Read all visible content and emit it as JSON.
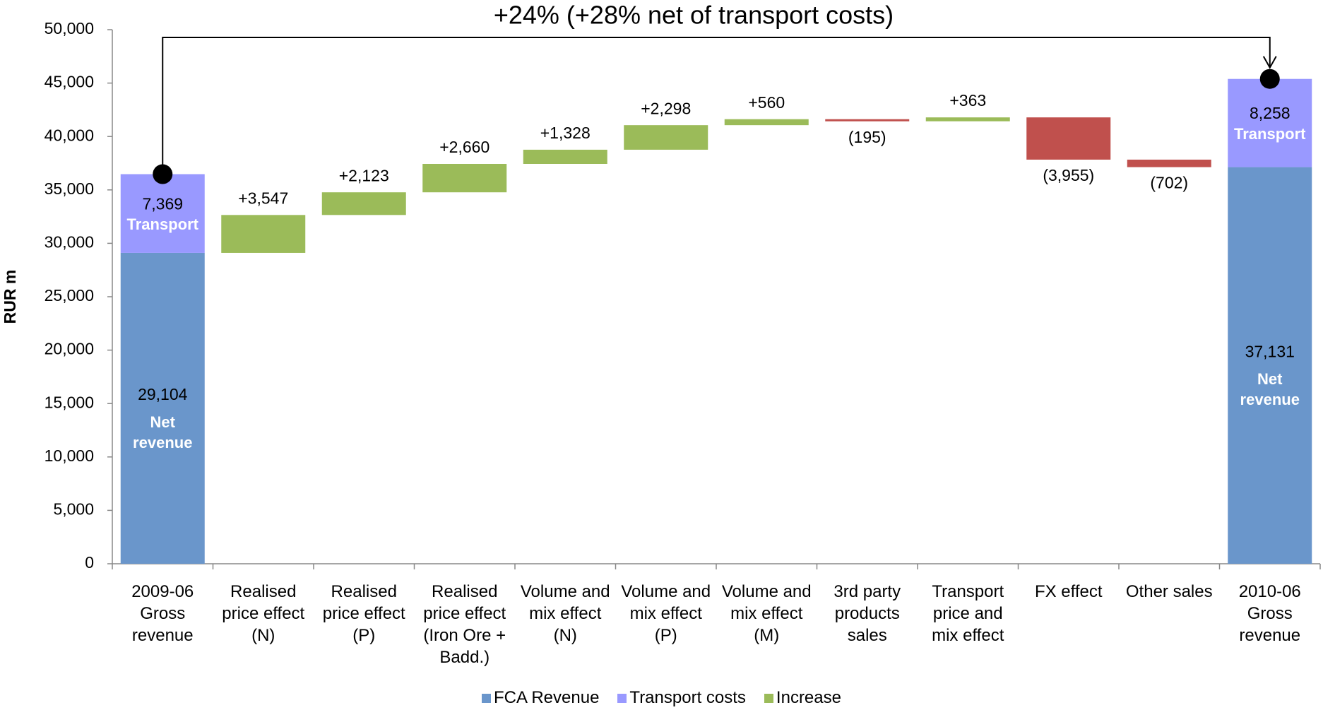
{
  "chart_data": {
    "type": "waterfall",
    "title": "+24% (+28% net of transport costs)",
    "y_label": "RUR m",
    "categories": [
      "2009-06\nGross\nrevenue",
      "Realised\nprice effect\n(N)",
      "Realised\nprice effect\n(P)",
      "Realised\nprice effect\n(Iron Ore +\nBadd.)",
      "Volume and\nmix effect\n(N)",
      "Volume and\nmix effect\n(P)",
      "Volume and\nmix effect\n(M)",
      "3rd party\nproducts\nsales",
      "Transport\nprice and\nmix effect",
      "FX effect",
      "Other sales",
      "2010-06\nGross\nrevenue"
    ],
    "series": [
      {
        "name": "FCA Revenue",
        "color": "#6a96cb",
        "segment_label": "Net revenue",
        "values": [
          29104,
          null,
          null,
          null,
          null,
          null,
          null,
          null,
          null,
          null,
          null,
          37131
        ],
        "value_labels": [
          "29,104",
          null,
          null,
          null,
          null,
          null,
          null,
          null,
          null,
          null,
          null,
          "37,131"
        ]
      },
      {
        "name": "Transport costs",
        "color": "#9999ff",
        "segment_label": "Transport",
        "values": [
          7369,
          null,
          null,
          null,
          null,
          null,
          null,
          null,
          null,
          null,
          null,
          8258
        ],
        "value_labels": [
          "7,369",
          null,
          null,
          null,
          null,
          null,
          null,
          null,
          null,
          null,
          null,
          "8,258"
        ]
      },
      {
        "name": "Increase",
        "color": "#9bbb59",
        "values": [
          null,
          3547,
          2123,
          2660,
          1328,
          2298,
          560,
          -195,
          363,
          -3955,
          -702,
          null
        ],
        "value_labels": [
          null,
          "+3,547",
          "+2,123",
          "+2,660",
          "+1,328",
          "+2,298",
          "+560",
          "(195)",
          "+363",
          "(3,955)",
          "(702)",
          null
        ]
      }
    ],
    "decrease_color": "#c0504d",
    "ylim": [
      0,
      50000
    ],
    "yticks": [
      0,
      {
        "value": 5000,
        "label": "5,000"
      },
      {
        "value": 10000,
        "label": "10,000"
      },
      {
        "value": 15000,
        "label": "15,000"
      },
      {
        "value": 20000,
        "label": "20,000"
      },
      {
        "value": 25000,
        "label": "25,000"
      },
      {
        "value": 30000,
        "label": "30,000"
      },
      {
        "value": 35000,
        "label": "35,000"
      },
      {
        "value": 40000,
        "label": "40,000"
      },
      {
        "value": 45000,
        "label": "45,000"
      },
      {
        "value": 50000,
        "label": "50,000"
      }
    ],
    "legend": "bottom"
  }
}
